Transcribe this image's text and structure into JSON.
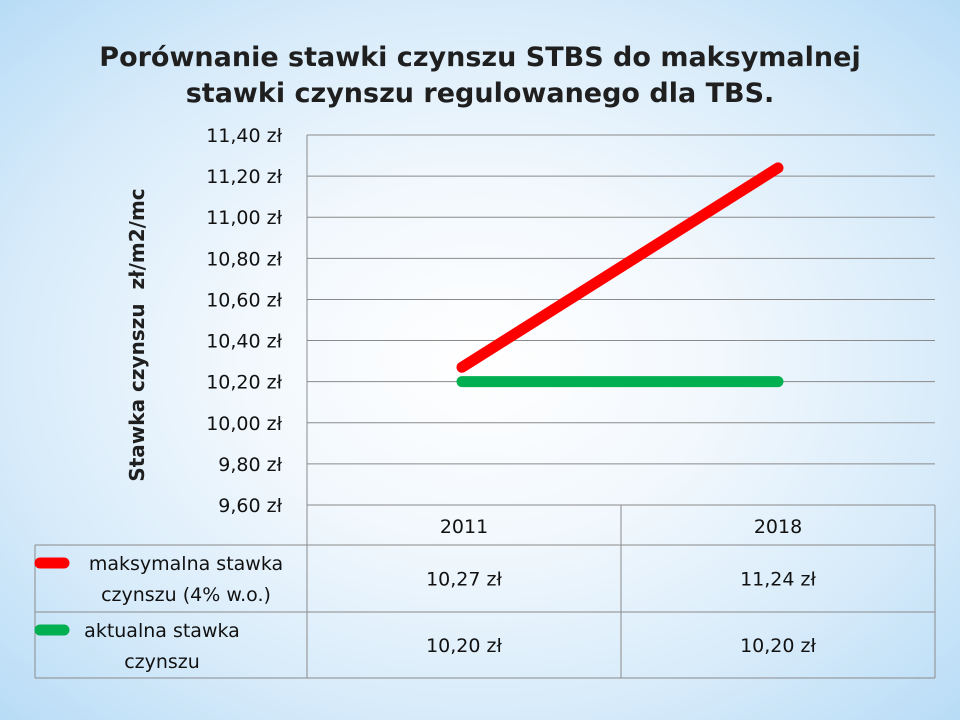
{
  "chart_data": {
    "type": "line",
    "title": "Porównanie stawki czynszu STBS do maksymalnej stawki czynszu regulowanego dla TBS.",
    "title_lines": [
      "Porównanie stawki czynszu STBS do maksymalnej",
      "stawki czynszu regulowanego dla TBS."
    ],
    "ylabel": "Stawka czynszu  zł/m2/mc",
    "xlabel": "",
    "categories": [
      "2011",
      "2018"
    ],
    "ylim": [
      9.6,
      11.4
    ],
    "yticks": [
      9.6,
      9.8,
      10.0,
      10.2,
      10.4,
      10.6,
      10.8,
      11.0,
      11.2,
      11.4
    ],
    "ytick_labels": [
      "9,60 zł",
      "9,80 zł",
      "10,00 zł",
      "10,20 zł",
      "10,40 zł",
      "10,60 zł",
      "10,80 zł",
      "11,00 zł",
      "11,20 zł",
      "11,40 zł"
    ],
    "grid": true,
    "legend": "data-table",
    "series": [
      {
        "name": "maksymalna stawka czynszu (4% w.o.)",
        "name_lines": [
          "maksymalna stawka",
          "czynszu (4% w.o.)"
        ],
        "values": [
          10.27,
          11.24
        ],
        "value_labels": [
          "10,27 zł",
          "11,24 zł"
        ],
        "color": "#ff0000"
      },
      {
        "name": "aktualna stawka czynszu",
        "name_lines": [
          "aktualna stawka",
          "czynszu"
        ],
        "values": [
          10.2,
          10.2
        ],
        "value_labels": [
          "10,20 zł",
          "10,20 zł"
        ],
        "color": "#00b050"
      }
    ]
  }
}
